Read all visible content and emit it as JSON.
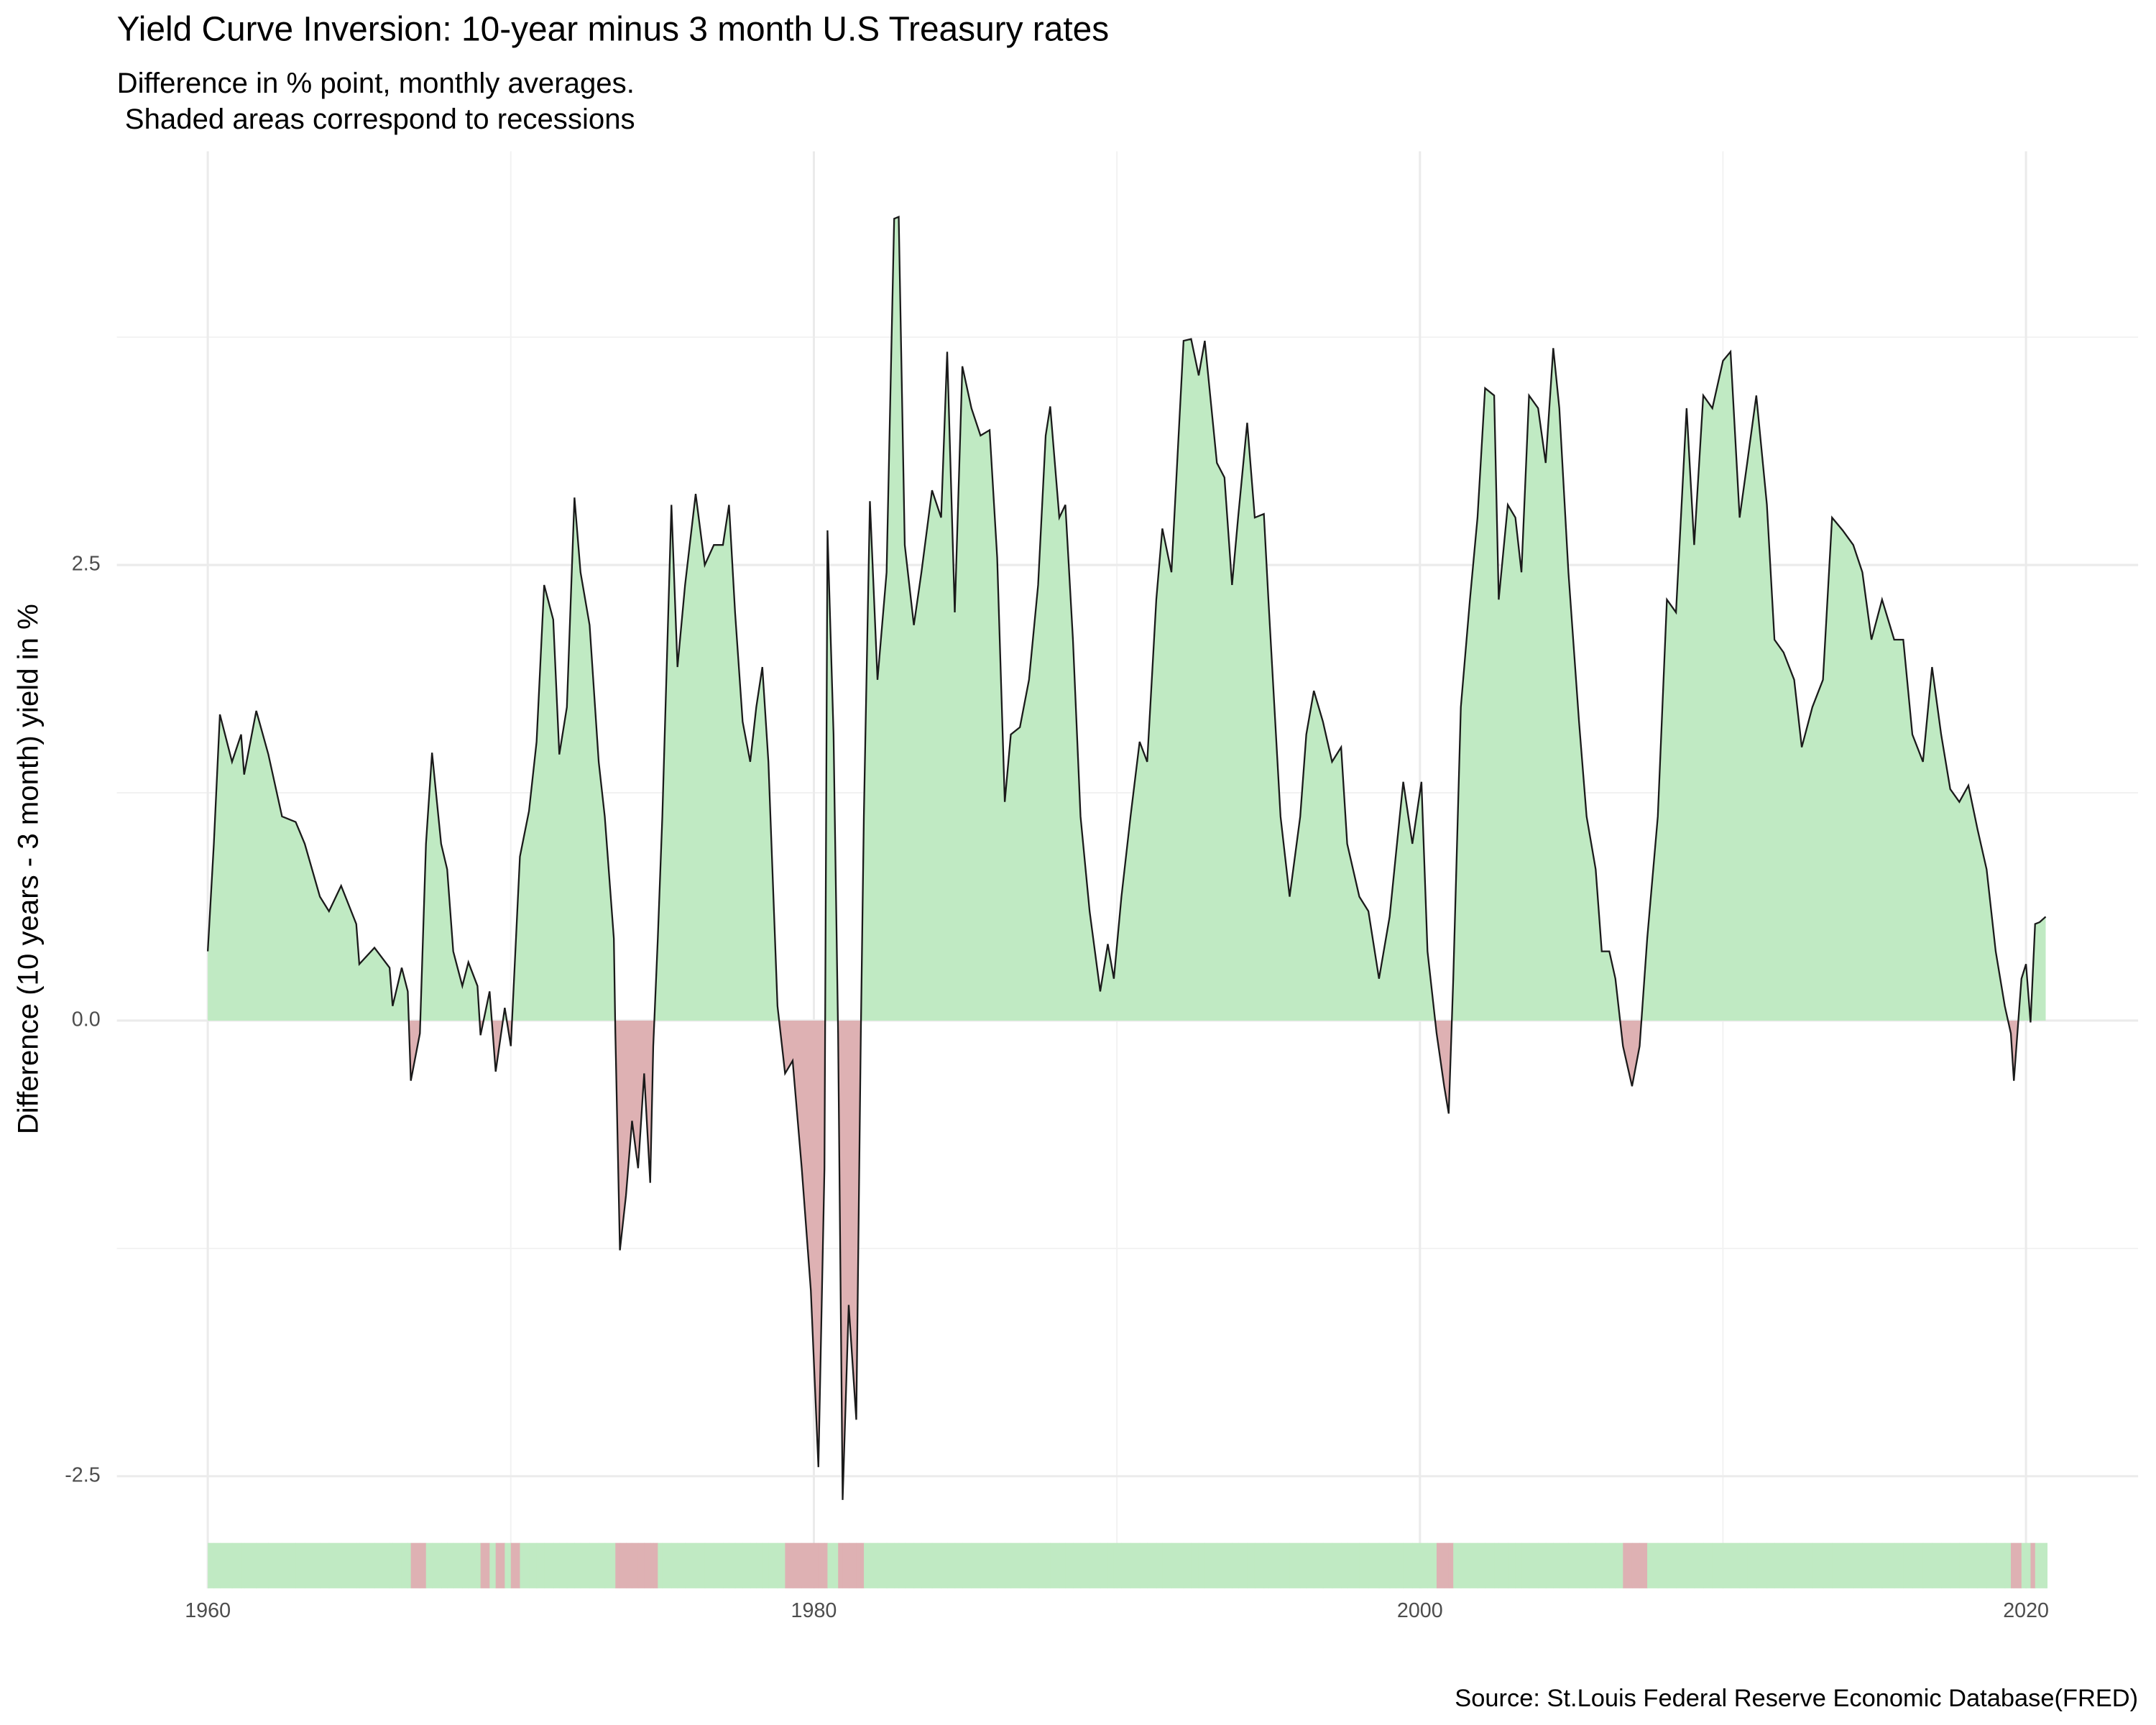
{
  "chart_data": {
    "type": "area",
    "title": "Yield Curve Inversion: 10-year minus 3 month U.S Treasury rates",
    "subtitle": [
      "Difference in % point, monthly averages.",
      " Shaded areas correspond to recessions"
    ],
    "y_label": "Difference (10 years - 3 month) yield in %",
    "caption": "Source: St.Louis Federal Reserve Economic Database(FRED)",
    "xlim": [
      1957.0,
      2023.7
    ],
    "ylim": [
      -2.7,
      4.77
    ],
    "xticks": [
      1960,
      1980,
      2000,
      2020
    ],
    "yticks": [
      -2.5,
      {
        "value": 0,
        "label": "0.0"
      },
      2.5
    ],
    "grid": true,
    "positive_color": "#c0eac3",
    "negative_color": "#deb1b3",
    "line_color": "#1a1a1a",
    "x": [
      1960.0,
      1960.2,
      1960.4,
      1960.8,
      1961.1,
      1961.2,
      1961.6,
      1962.0,
      1962.45,
      1962.9,
      1963.2,
      1963.7,
      1964.0,
      1964.4,
      1964.9,
      1965.0,
      1965.5,
      1966.0,
      1966.1,
      1966.4,
      1966.6,
      1966.7,
      1967.0,
      1967.2,
      1967.4,
      1967.7,
      1967.9,
      1968.1,
      1968.4,
      1968.6,
      1968.9,
      1969.0,
      1969.3,
      1969.5,
      1969.8,
      1970.0,
      1970.3,
      1970.6,
      1970.85,
      1971.1,
      1971.4,
      1971.6,
      1971.85,
      1972.1,
      1972.3,
      1972.6,
      1972.9,
      1973.1,
      1973.4,
      1973.45,
      1973.6,
      1973.8,
      1974.0,
      1974.2,
      1974.4,
      1974.6,
      1974.7,
      1974.85,
      1975.0,
      1975.3,
      1975.5,
      1975.75,
      1976.1,
      1976.4,
      1976.7,
      1977.0,
      1977.2,
      1977.4,
      1977.65,
      1977.9,
      1978.1,
      1978.3,
      1978.5,
      1978.8,
      1979.05,
      1979.3,
      1979.6,
      1979.9,
      1980.15,
      1980.35,
      1980.45,
      1980.65,
      1980.8,
      1980.95,
      1981.15,
      1981.4,
      1981.55,
      1981.65,
      1981.85,
      1982.1,
      1982.4,
      1982.65,
      1982.8,
      1983.0,
      1983.3,
      1983.55,
      1983.9,
      1984.2,
      1984.4,
      1984.65,
      1984.9,
      1985.2,
      1985.5,
      1985.8,
      1986.05,
      1986.3,
      1986.5,
      1986.8,
      1987.1,
      1987.4,
      1987.65,
      1987.8,
      1988.1,
      1988.3,
      1988.55,
      1988.8,
      1989.1,
      1989.45,
      1989.7,
      1989.9,
      1990.15,
      1990.45,
      1990.75,
      1991.0,
      1991.3,
      1991.5,
      1991.8,
      1992.2,
      1992.45,
      1992.7,
      1992.9,
      1993.3,
      1993.55,
      1993.8,
      1994.0,
      1994.3,
      1994.55,
      1994.85,
      1995.0,
      1995.4,
      1995.7,
      1996.05,
      1996.25,
      1996.5,
      1996.8,
      1997.1,
      1997.4,
      1997.6,
      1998.0,
      1998.3,
      1998.65,
      1999.0,
      1999.2,
      1999.45,
      1999.75,
      2000.05,
      2000.25,
      2000.55,
      2000.8,
      2000.95,
      2001.1,
      2001.35,
      2001.65,
      2001.9,
      2002.15,
      2002.45,
      2002.6,
      2002.9,
      2003.15,
      2003.35,
      2003.6,
      2003.9,
      2004.15,
      2004.4,
      2004.6,
      2004.9,
      2005.25,
      2005.5,
      2005.8,
      2006.0,
      2006.25,
      2006.45,
      2006.7,
      2007.0,
      2007.25,
      2007.5,
      2007.85,
      2008.15,
      2008.45,
      2008.8,
      2009.05,
      2009.35,
      2009.65,
      2010.0,
      2010.25,
      2010.55,
      2010.8,
      2011.1,
      2011.45,
      2011.7,
      2012.0,
      2012.35,
      2012.6,
      2012.95,
      2013.3,
      2013.6,
      2013.95,
      2014.3,
      2014.6,
      2014.9,
      2015.25,
      2015.65,
      2015.95,
      2016.25,
      2016.6,
      2016.9,
      2017.2,
      2017.5,
      2017.8,
      2018.1,
      2018.4,
      2018.7,
      2019.0,
      2019.3,
      2019.5,
      2019.6,
      2019.85,
      2020.0,
      2020.15,
      2020.3,
      2020.45,
      2020.65
    ],
    "values": [
      0.38,
      0.97,
      1.68,
      1.42,
      1.57,
      1.35,
      1.7,
      1.46,
      1.12,
      1.09,
      0.97,
      0.68,
      0.6,
      0.74,
      0.53,
      0.31,
      0.4,
      0.29,
      0.08,
      0.29,
      0.16,
      -0.33,
      -0.07,
      0.97,
      1.47,
      0.97,
      0.83,
      0.38,
      0.19,
      0.32,
      0.19,
      -0.08,
      0.16,
      -0.28,
      0.07,
      -0.14,
      0.9,
      1.15,
      1.53,
      2.39,
      2.2,
      1.46,
      1.72,
      2.87,
      2.46,
      2.17,
      1.42,
      1.12,
      0.45,
      -0.07,
      -1.26,
      -0.96,
      -0.55,
      -0.81,
      -0.29,
      -0.89,
      -0.14,
      0.45,
      1.12,
      2.83,
      1.94,
      2.39,
      2.89,
      2.5,
      2.61,
      2.61,
      2.83,
      2.24,
      1.64,
      1.42,
      1.72,
      1.94,
      1.42,
      0.08,
      -0.29,
      -0.22,
      -0.81,
      -1.48,
      -2.45,
      -0.81,
      2.69,
      1.57,
      -0.07,
      -2.63,
      -1.56,
      -2.19,
      -0.07,
      1.12,
      2.85,
      1.87,
      2.46,
      4.4,
      4.41,
      2.61,
      2.17,
      2.46,
      2.91,
      2.76,
      3.67,
      2.24,
      3.59,
      3.36,
      3.21,
      3.24,
      2.54,
      1.2,
      1.57,
      1.61,
      1.87,
      2.39,
      3.21,
      3.37,
      2.76,
      2.83,
      2.09,
      1.12,
      0.6,
      0.16,
      0.42,
      0.23,
      0.68,
      1.12,
      1.53,
      1.42,
      2.31,
      2.7,
      2.46,
      3.73,
      3.74,
      3.54,
      3.73,
      3.06,
      2.98,
      2.39,
      2.76,
      3.28,
      2.76,
      2.78,
      2.31,
      1.12,
      0.68,
      1.12,
      1.57,
      1.81,
      1.64,
      1.42,
      1.5,
      0.97,
      0.68,
      0.6,
      0.23,
      0.57,
      0.9,
      1.31,
      0.97,
      1.31,
      0.38,
      -0.07,
      -0.36,
      -0.51,
      0.23,
      1.72,
      2.31,
      2.76,
      3.47,
      3.43,
      2.31,
      2.83,
      2.76,
      2.46,
      3.43,
      3.36,
      3.06,
      3.69,
      3.36,
      2.46,
      1.64,
      1.12,
      0.83,
      0.38,
      0.38,
      0.23,
      -0.14,
      -0.36,
      -0.14,
      0.45,
      1.12,
      2.31,
      2.24,
      3.36,
      2.61,
      3.43,
      3.36,
      3.62,
      3.67,
      2.76,
      3.06,
      3.43,
      2.83,
      2.09,
      2.02,
      1.87,
      1.5,
      1.72,
      1.87,
      2.76,
      2.69,
      2.61,
      2.46,
      2.09,
      2.31,
      2.09,
      2.09,
      1.57,
      1.42,
      1.94,
      1.57,
      1.27,
      1.2,
      1.29,
      1.05,
      0.83,
      0.38,
      0.08,
      -0.07,
      -0.33,
      0.23,
      0.31,
      -0.01,
      0.53,
      0.54,
      0.57
    ]
  }
}
